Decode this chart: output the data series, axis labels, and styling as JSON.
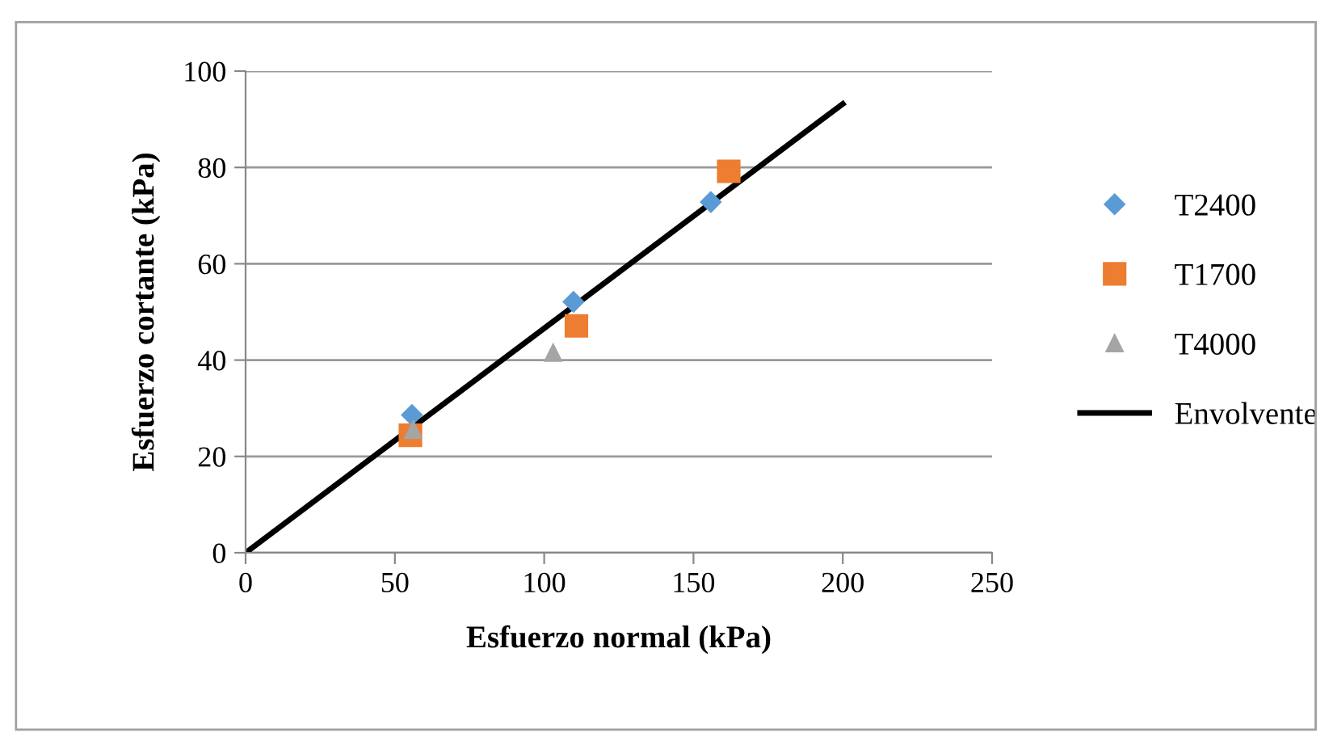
{
  "chart_data": {
    "type": "scatter",
    "xlabel": "Esfuerzo normal (kPa)",
    "ylabel": "Esfuerzo cortante (kPa)",
    "xlim": [
      0,
      250
    ],
    "xticks": [
      0,
      50,
      100,
      150,
      200,
      250
    ],
    "ylim": [
      0,
      100
    ],
    "yticks": [
      0,
      20,
      40,
      60,
      80,
      100
    ],
    "grid": "y",
    "legend": "right",
    "series": [
      {
        "name": "T2400",
        "color": "#5b9bd5",
        "marker": "diamond",
        "x": [
          55.7,
          109.8,
          155.8
        ],
        "values": [
          28.6,
          52.1,
          72.8
        ]
      },
      {
        "name": "T1700",
        "color": "#ed7d31",
        "marker": "square",
        "x": [
          55.2,
          110.8,
          161.8
        ],
        "values": [
          24.4,
          47.1,
          79.2
        ]
      },
      {
        "name": "T4000",
        "color": "#a5a5a5",
        "marker": "triangle",
        "x": [
          56.1,
          103
        ],
        "values": [
          25.5,
          41.5
        ]
      },
      {
        "name": "Envolvente",
        "type": "line",
        "color": "#000000",
        "marker": "none",
        "line_style": "solid",
        "x": [
          0,
          200
        ],
        "values": [
          0,
          93.2
        ]
      }
    ]
  }
}
